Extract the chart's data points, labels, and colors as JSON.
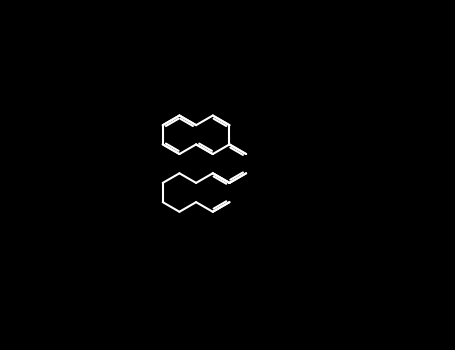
{
  "bg": "#000000",
  "white": "#ffffff",
  "red": "#cc0000",
  "blue": "#00008b",
  "lw": 1.5,
  "R": 25,
  "figsize": [
    4.55,
    3.5
  ],
  "dpi": 100
}
